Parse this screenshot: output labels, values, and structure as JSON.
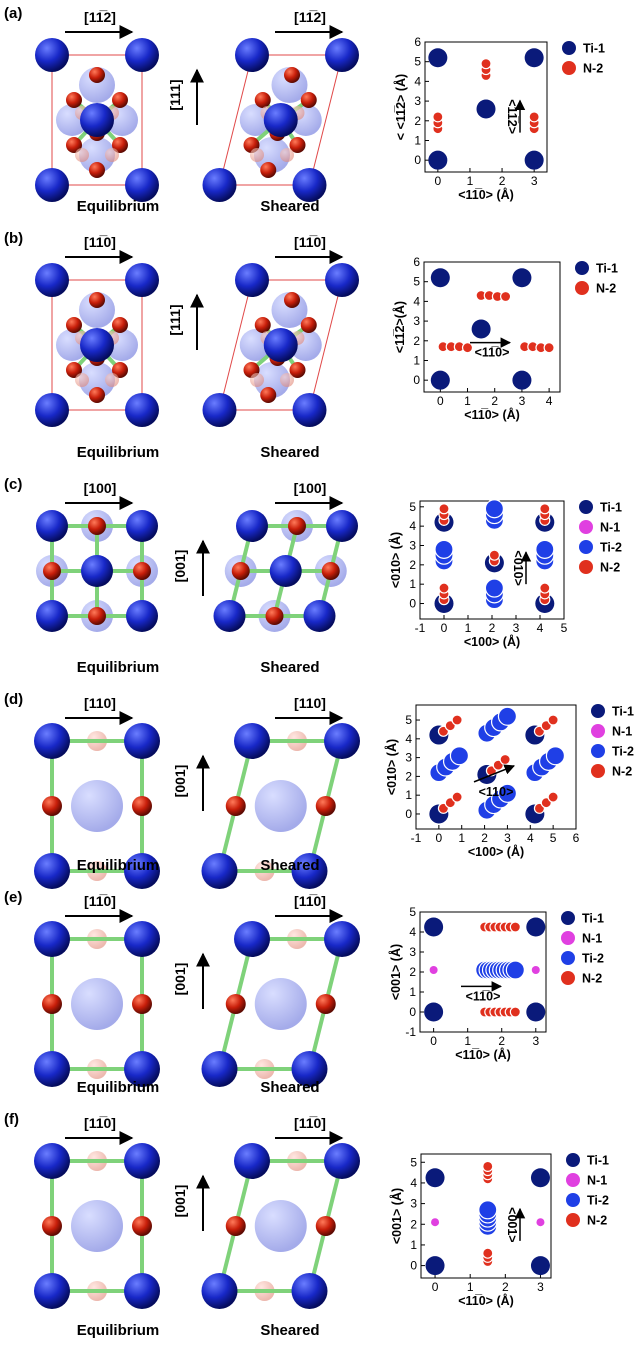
{
  "panels": [
    {
      "id": "a",
      "label": "(a)",
      "dir_label": "[11̅2]",
      "shear_axis": "[111]",
      "eq_caption": "Equilibrium",
      "sh_caption": "Sheared",
      "crystal": "hex",
      "chart_data": {
        "type": "scatter",
        "xlabel": "<11̅0> (Å)",
        "ylabel": "< <11̅2> (Å)",
        "xlim": [
          -0.4,
          3.4
        ],
        "ylim": [
          -0.6,
          6
        ],
        "xticks": [
          "0",
          "1",
          "2",
          "3"
        ],
        "yticks": [
          "0",
          "1",
          "2",
          "3",
          "4",
          "5",
          "6"
        ],
        "inplot_label": "<11̅2>",
        "series": [
          {
            "name": "Ti-1",
            "color": "#0a1a7a",
            "points": [
              [
                0,
                5.2
              ],
              [
                3,
                5.2
              ],
              [
                1.5,
                2.6
              ],
              [
                0,
                0
              ],
              [
                3,
                0
              ]
            ]
          },
          {
            "name": "N-2",
            "color": "#e0301e",
            "points": [
              [
                0,
                1.6
              ],
              [
                0,
                1.9
              ],
              [
                0,
                2.2
              ],
              [
                1.5,
                4.3
              ],
              [
                1.5,
                4.6
              ],
              [
                1.5,
                4.9
              ],
              [
                3,
                1.6
              ],
              [
                3,
                1.9
              ],
              [
                3,
                2.2
              ]
            ]
          }
        ]
      }
    },
    {
      "id": "b",
      "label": "(b)",
      "dir_label": "[11̅0]",
      "shear_axis": "[111]",
      "eq_caption": "Equilibrium",
      "sh_caption": "Sheared",
      "crystal": "hex",
      "chart_data": {
        "type": "scatter",
        "xlabel": "<11̅0> (Å)",
        "ylabel": "<11̅2>(Å)",
        "xlim": [
          -0.6,
          4.4
        ],
        "ylim": [
          -0.6,
          6
        ],
        "xticks": [
          "0",
          "1",
          "2",
          "3",
          "4"
        ],
        "yticks": [
          "0",
          "1",
          "2",
          "3",
          "4",
          "5",
          "6"
        ],
        "inplot_label": "<11̅0>",
        "series": [
          {
            "name": "Ti-1",
            "color": "#0a1a7a",
            "points": [
              [
                0,
                5.2
              ],
              [
                3,
                5.2
              ],
              [
                1.5,
                2.6
              ],
              [
                0,
                0
              ],
              [
                3,
                0
              ]
            ]
          },
          {
            "name": "N-2",
            "color": "#e0301e",
            "points": [
              [
                0.1,
                1.7
              ],
              [
                0.4,
                1.7
              ],
              [
                0.7,
                1.7
              ],
              [
                1.0,
                1.65
              ],
              [
                1.5,
                4.3
              ],
              [
                1.8,
                4.3
              ],
              [
                2.1,
                4.25
              ],
              [
                2.4,
                4.25
              ],
              [
                3.1,
                1.7
              ],
              [
                3.4,
                1.7
              ],
              [
                3.7,
                1.65
              ],
              [
                4.0,
                1.65
              ]
            ]
          }
        ]
      }
    },
    {
      "id": "c",
      "label": "(c)",
      "dir_label": "[100]",
      "shear_axis": "[001]",
      "eq_caption": "Equilibrium",
      "sh_caption": "Sheared",
      "crystal": "cubic",
      "chart_data": {
        "type": "scatter",
        "xlabel": "<100> (Å)",
        "ylabel": "<010> (Å)",
        "xlim": [
          -1,
          5
        ],
        "ylim": [
          -0.8,
          5.3
        ],
        "xticks": [
          "-1",
          "0",
          "1",
          "2",
          "3",
          "4",
          "5"
        ],
        "yticks": [
          "0",
          "1",
          "2",
          "3",
          "4",
          "5"
        ],
        "inplot_label": "<010>",
        "series": [
          {
            "name": "Ti-1",
            "color": "#0a1a7a",
            "points": [
              [
                0,
                4.2
              ],
              [
                4.2,
                4.2
              ],
              [
                2.1,
                2.1
              ],
              [
                0,
                0
              ],
              [
                4.2,
                0
              ]
            ]
          },
          {
            "name": "N-1",
            "color": "#e040e0",
            "points": []
          },
          {
            "name": "Ti-2",
            "color": "#1f3fe6",
            "points": [
              [
                2.1,
                4.3
              ],
              [
                2.1,
                4.6
              ],
              [
                2.1,
                4.9
              ],
              [
                0,
                2.2
              ],
              [
                0,
                2.5
              ],
              [
                0,
                2.8
              ],
              [
                4.2,
                2.2
              ],
              [
                4.2,
                2.5
              ],
              [
                4.2,
                2.8
              ],
              [
                2.1,
                0.2
              ],
              [
                2.1,
                0.5
              ],
              [
                2.1,
                0.8
              ]
            ]
          },
          {
            "name": "N-2",
            "color": "#e0301e",
            "points": [
              [
                0,
                4.3
              ],
              [
                0,
                4.6
              ],
              [
                0,
                4.9
              ],
              [
                4.2,
                4.3
              ],
              [
                4.2,
                4.6
              ],
              [
                4.2,
                4.9
              ],
              [
                2.1,
                2.2
              ],
              [
                2.1,
                2.5
              ],
              [
                0,
                0.2
              ],
              [
                0,
                0.5
              ],
              [
                0,
                0.8
              ],
              [
                4.2,
                0.2
              ],
              [
                4.2,
                0.5
              ],
              [
                4.2,
                0.8
              ]
            ]
          }
        ]
      }
    },
    {
      "id": "d",
      "label": "(d)",
      "dir_label": "[110]",
      "shear_axis": "[001]",
      "eq_caption": "Equilibrium",
      "sh_caption": "Sheared",
      "crystal": "bcc",
      "chart_data": {
        "type": "scatter",
        "xlabel": "<100> (Å)",
        "ylabel": "<010> (Å)",
        "xlim": [
          -1,
          6
        ],
        "ylim": [
          -0.8,
          5.8
        ],
        "xticks": [
          "-1",
          "0",
          "1",
          "2",
          "3",
          "4",
          "5",
          "6"
        ],
        "yticks": [
          "0",
          "1",
          "2",
          "3",
          "4",
          "5"
        ],
        "inplot_label": "<110>",
        "series": [
          {
            "name": "Ti-1",
            "color": "#0a1a7a",
            "points": [
              [
                0,
                4.2
              ],
              [
                4.2,
                4.2
              ],
              [
                2.1,
                2.1
              ],
              [
                0,
                0
              ],
              [
                4.2,
                0
              ]
            ]
          },
          {
            "name": "N-1",
            "color": "#e040e0",
            "points": []
          },
          {
            "name": "Ti-2",
            "color": "#1f3fe6",
            "points": [
              [
                2.1,
                4.3
              ],
              [
                2.4,
                4.6
              ],
              [
                2.7,
                4.9
              ],
              [
                3.0,
                5.2
              ],
              [
                0,
                2.2
              ],
              [
                0.3,
                2.5
              ],
              [
                0.6,
                2.8
              ],
              [
                0.9,
                3.1
              ],
              [
                4.2,
                2.2
              ],
              [
                4.5,
                2.5
              ],
              [
                4.8,
                2.8
              ],
              [
                5.1,
                3.1
              ],
              [
                2.1,
                0.2
              ],
              [
                2.4,
                0.5
              ],
              [
                2.7,
                0.8
              ],
              [
                3.0,
                1.1
              ]
            ]
          },
          {
            "name": "N-2",
            "color": "#e0301e",
            "points": [
              [
                0.2,
                4.4
              ],
              [
                0.5,
                4.7
              ],
              [
                0.8,
                5.0
              ],
              [
                4.4,
                4.4
              ],
              [
                4.7,
                4.7
              ],
              [
                5.0,
                5.0
              ],
              [
                2.3,
                2.3
              ],
              [
                2.6,
                2.6
              ],
              [
                2.9,
                2.9
              ],
              [
                0.2,
                0.3
              ],
              [
                0.5,
                0.6
              ],
              [
                0.8,
                0.9
              ],
              [
                4.4,
                0.3
              ],
              [
                4.7,
                0.6
              ],
              [
                5.0,
                0.9
              ]
            ]
          }
        ]
      }
    },
    {
      "id": "e",
      "label": "(e)",
      "dir_label": "[11̅0]",
      "shear_axis": "[001]",
      "eq_caption": "Equilibrium",
      "sh_caption": "Sheared",
      "crystal": "bcc",
      "chart_data": {
        "type": "scatter",
        "xlabel": "<11̅0> (Å)",
        "ylabel": "<001> (Å)",
        "xlim": [
          -0.4,
          3.3
        ],
        "ylim": [
          -1,
          5
        ],
        "xticks": [
          "0",
          "1",
          "2",
          "3"
        ],
        "yticks": [
          "-1",
          "0",
          "1",
          "2",
          "3",
          "4",
          "5"
        ],
        "inplot_label": "<11̅0>",
        "series": [
          {
            "name": "Ti-1",
            "color": "#0a1a7a",
            "points": [
              [
                0,
                4.25
              ],
              [
                3,
                4.25
              ],
              [
                0,
                0
              ],
              [
                3,
                0
              ]
            ]
          },
          {
            "name": "N-1",
            "color": "#e040e0",
            "points": [
              [
                0,
                2.1
              ],
              [
                3,
                2.1
              ]
            ]
          },
          {
            "name": "Ti-2",
            "color": "#1f3fe6",
            "points": [
              [
                1.5,
                2.1
              ],
              [
                1.6,
                2.1
              ],
              [
                1.7,
                2.1
              ],
              [
                1.8,
                2.1
              ],
              [
                1.9,
                2.1
              ],
              [
                2.0,
                2.1
              ],
              [
                2.1,
                2.1
              ],
              [
                2.2,
                2.1
              ],
              [
                2.3,
                2.1
              ],
              [
                2.4,
                2.1
              ]
            ]
          },
          {
            "name": "N-2",
            "color": "#e0301e",
            "points": [
              [
                1.5,
                4.25
              ],
              [
                1.65,
                4.25
              ],
              [
                1.8,
                4.25
              ],
              [
                1.95,
                4.25
              ],
              [
                2.1,
                4.25
              ],
              [
                2.25,
                4.25
              ],
              [
                2.4,
                4.25
              ],
              [
                1.5,
                0
              ],
              [
                1.65,
                0
              ],
              [
                1.8,
                0
              ],
              [
                1.95,
                0
              ],
              [
                2.1,
                0
              ],
              [
                2.25,
                0
              ],
              [
                2.4,
                0
              ]
            ]
          }
        ]
      }
    },
    {
      "id": "f",
      "label": "(f)",
      "dir_label": "[11̅0]",
      "shear_axis": "[001]",
      "eq_caption": "Equilibrium",
      "sh_caption": "Sheared",
      "crystal": "bcc",
      "chart_data": {
        "type": "scatter",
        "xlabel": "<11̅0> (Å)",
        "ylabel": "<001> (Å)",
        "xlim": [
          -0.4,
          3.3
        ],
        "ylim": [
          -0.6,
          5.4
        ],
        "xticks": [
          "0",
          "1",
          "2",
          "3"
        ],
        "yticks": [
          "0",
          "1",
          "2",
          "3",
          "4",
          "5"
        ],
        "inplot_label": "<001>",
        "series": [
          {
            "name": "Ti-1",
            "color": "#0a1a7a",
            "points": [
              [
                0,
                4.25
              ],
              [
                3,
                4.25
              ],
              [
                0,
                0
              ],
              [
                3,
                0
              ]
            ]
          },
          {
            "name": "N-1",
            "color": "#e040e0",
            "points": [
              [
                0,
                2.1
              ],
              [
                3,
                2.1
              ]
            ]
          },
          {
            "name": "Ti-2",
            "color": "#1f3fe6",
            "points": [
              [
                1.5,
                1.9
              ],
              [
                1.5,
                2.1
              ],
              [
                1.5,
                2.3
              ],
              [
                1.5,
                2.5
              ],
              [
                1.5,
                2.7
              ]
            ]
          },
          {
            "name": "N-2",
            "color": "#e0301e",
            "points": [
              [
                1.5,
                4.2
              ],
              [
                1.5,
                4.4
              ],
              [
                1.5,
                4.6
              ],
              [
                1.5,
                4.8
              ],
              [
                1.5,
                0.2
              ],
              [
                1.5,
                0.4
              ],
              [
                1.5,
                0.6
              ]
            ]
          }
        ]
      }
    }
  ]
}
